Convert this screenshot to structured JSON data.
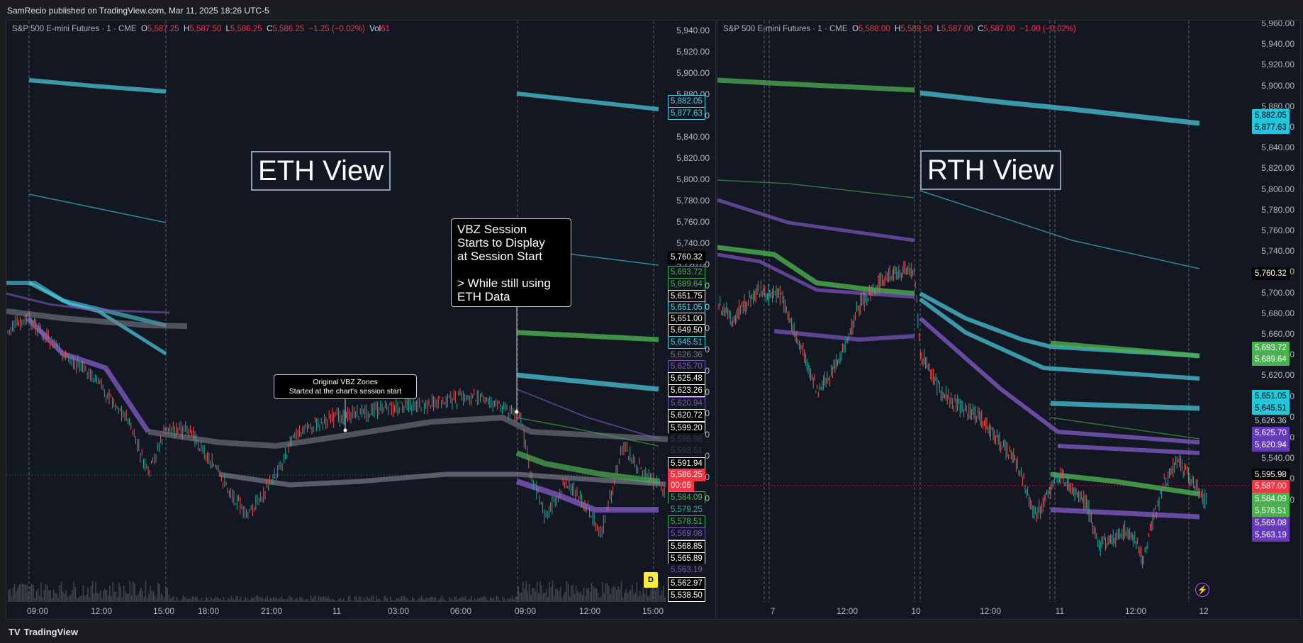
{
  "header": {
    "published": "SamRecio published on TradingView.com, Mar 11, 2025 18:26 UTC-5"
  },
  "footer": {
    "brand": "TradingView",
    "logo": "TV"
  },
  "left": {
    "legend": {
      "symbol": "S&P 500 E-mini Futures · 1 · CME",
      "o_k": "O",
      "o": "5,587.25",
      "h_k": "H",
      "h": "5,587.50",
      "l_k": "L",
      "l": "5,586.25",
      "c_k": "C",
      "c": "5,586.25",
      "chg": "−1.25 (−0.02%)",
      "vol_k": "Vol",
      "vol": "61"
    },
    "view_label": "ETH View",
    "annotation_main": "VBZ Session\nStarts to Display\nat Session Start\n\n> While still using\nETH Data",
    "annotation_small": "Original VBZ Zones\nStarted at the chart's session start",
    "y_ticks": [
      "5,940.00",
      "5,920.00",
      "5,900.00",
      "5,880.00",
      "5,860.00",
      "5,840.00",
      "5,820.00",
      "5,800.00",
      "5,780.00",
      "5,760.00",
      "5,740.00",
      "5,720.00",
      "5,700.00",
      "5,680.00",
      "5,660.00",
      "5,640.00",
      "5,620.00",
      "5,600.00",
      "5,580.00",
      "5,560.00",
      "5,540.00",
      "5,520.00",
      "5,500.00"
    ],
    "x_ticks": [
      "09:00",
      "12:00",
      "15:00",
      "18:00",
      "21:00",
      "11",
      "03:00",
      "06:00",
      "09:00",
      "12:00",
      "15:00"
    ],
    "price_tags": [
      {
        "t": "5,882.05",
        "bg": "#131722",
        "fg": "#4dd0e1",
        "bd": "#4dd0e1"
      },
      {
        "t": "5,877.63",
        "bg": "#131722",
        "fg": "#4dd0e1",
        "bd": "#4dd0e1"
      },
      {
        "t": "5,760.32",
        "bg": "#000000",
        "fg": "#ffffff",
        "bd": "#000000"
      },
      {
        "t": "5,693.72",
        "bg": "#131722",
        "fg": "#4caf50",
        "bd": "#4caf50"
      },
      {
        "t": "5,689.64",
        "bg": "#131722",
        "fg": "#4caf50",
        "bd": "#4caf50"
      },
      {
        "t": "5,651.75",
        "bg": "#000000",
        "fg": "#ffffff",
        "bd": "#ffffff"
      },
      {
        "t": "5,651.05",
        "bg": "#131722",
        "fg": "#4dd0e1",
        "bd": "#4dd0e1"
      },
      {
        "t": "5,651.00",
        "bg": "#000000",
        "fg": "#ffffff",
        "bd": "#ffffff"
      },
      {
        "t": "5,649.50",
        "bg": "#000000",
        "fg": "#ffffff",
        "bd": "#ffffff"
      },
      {
        "t": "5,645.51",
        "bg": "#131722",
        "fg": "#4dd0e1",
        "bd": "#4dd0e1"
      },
      {
        "t": "5,626.36",
        "bg": "#131722",
        "fg": "#787b86",
        "bd": "#131722"
      },
      {
        "t": "5,625.70",
        "bg": "#131722",
        "fg": "#7e57c2",
        "bd": "#7e57c2"
      },
      {
        "t": "5,625.48",
        "bg": "#000000",
        "fg": "#ffffff",
        "bd": "#ffffff"
      },
      {
        "t": "5,623.26",
        "bg": "#000000",
        "fg": "#ffffff",
        "bd": "#ffffff"
      },
      {
        "t": "5,620.94",
        "bg": "#131722",
        "fg": "#7e57c2",
        "bd": "#7e57c2"
      },
      {
        "t": "5,620.72",
        "bg": "#000000",
        "fg": "#ffffff",
        "bd": "#ffffff"
      },
      {
        "t": "5,599.20",
        "bg": "#000000",
        "fg": "#ffffff",
        "bd": "#ffffff"
      },
      {
        "t": "5,595.98",
        "bg": "#131722",
        "fg": "#363a45",
        "bd": "#131722"
      },
      {
        "t": "5,593.51",
        "bg": "#131722",
        "fg": "#363a45",
        "bd": "#131722"
      },
      {
        "t": "5,591.94",
        "bg": "#000000",
        "fg": "#ffffff",
        "bd": "#ffffff"
      },
      {
        "t": "5,586.25",
        "bg": "#f23645",
        "fg": "#ffffff",
        "bd": "#f23645"
      },
      {
        "t": "00:06",
        "bg": "#f23645",
        "fg": "#ffffff",
        "bd": "#f23645"
      },
      {
        "t": "5,584.09",
        "bg": "#131722",
        "fg": "#4caf50",
        "bd": "#4caf50"
      },
      {
        "t": "5,579.25",
        "bg": "#131722",
        "fg": "#26a69a",
        "bd": "#131722"
      },
      {
        "t": "5,578.51",
        "bg": "#131722",
        "fg": "#4caf50",
        "bd": "#4caf50"
      },
      {
        "t": "5,569.08",
        "bg": "#131722",
        "fg": "#7e57c2",
        "bd": "#7e57c2"
      },
      {
        "t": "5,568.85",
        "bg": "#000000",
        "fg": "#ffffff",
        "bd": "#ffffff"
      },
      {
        "t": "5,565.89",
        "bg": "#000000",
        "fg": "#ffffff",
        "bd": "#ffffff"
      },
      {
        "t": "5,563.19",
        "bg": "#131722",
        "fg": "#7e57c2",
        "bd": "#131722"
      },
      {
        "t": "5,562.97",
        "bg": "#000000",
        "fg": "#ffffff",
        "bd": "#ffffff"
      },
      {
        "t": "5,538.50",
        "bg": "#000000",
        "fg": "#ffffff",
        "bd": "#ffffff"
      }
    ],
    "badge": "D"
  },
  "right": {
    "legend": {
      "symbol": "S&P 500 E-mini Futures · 1 · CME",
      "o_k": "O",
      "o": "5,588.00",
      "h_k": "H",
      "h": "5,589.50",
      "l_k": "L",
      "l": "5,587.00",
      "c_k": "C",
      "c": "5,587.00",
      "chg": "−1.00 (−0.02%)"
    },
    "view_label": "RTH View",
    "y_ticks": [
      "5,960.00",
      "5,940.00",
      "5,920.00",
      "5,900.00",
      "5,880.00",
      "5,860.00",
      "5,840.00",
      "5,820.00",
      "5,800.00",
      "5,780.00",
      "5,760.00",
      "5,740.00",
      "5,720.00",
      "5,700.00",
      "5,680.00",
      "5,660.00",
      "5,640.00",
      "5,620.00",
      "5,600.00",
      "5,580.00",
      "5,560.00",
      "5,540.00",
      "5,520.00",
      "5,500.00"
    ],
    "x_ticks": [
      "7",
      "12:00",
      "10",
      "12:00",
      "11",
      "12:00",
      "12"
    ],
    "price_tags": [
      {
        "t": "5,882.05",
        "bg": "#26c6da",
        "fg": "#000000",
        "bd": "#26c6da"
      },
      {
        "t": "5,877.63",
        "bg": "#26c6da",
        "fg": "#000000",
        "bd": "#26c6da"
      },
      {
        "t": "5,760.32",
        "bg": "#000000",
        "fg": "#ffffff",
        "bd": "#000000"
      },
      {
        "t": "5,693.72",
        "bg": "#4caf50",
        "fg": "#ffffff",
        "bd": "#4caf50"
      },
      {
        "t": "5,689.64",
        "bg": "#4caf50",
        "fg": "#ffffff",
        "bd": "#4caf50"
      },
      {
        "t": "5,651.05",
        "bg": "#26c6da",
        "fg": "#000000",
        "bd": "#26c6da"
      },
      {
        "t": "5,645.51",
        "bg": "#26c6da",
        "fg": "#000000",
        "bd": "#26c6da"
      },
      {
        "t": "5,626.36",
        "bg": "#131722",
        "fg": "#d1d4dc",
        "bd": "#131722"
      },
      {
        "t": "5,625.70",
        "bg": "#673ab7",
        "fg": "#ffffff",
        "bd": "#673ab7"
      },
      {
        "t": "5,620.94",
        "bg": "#673ab7",
        "fg": "#ffffff",
        "bd": "#673ab7"
      },
      {
        "t": "5,595.98",
        "bg": "#000000",
        "fg": "#ffffff",
        "bd": "#000000"
      },
      {
        "t": "5,587.00",
        "bg": "#f23645",
        "fg": "#ffffff",
        "bd": "#f23645"
      },
      {
        "t": "5,584.09",
        "bg": "#4caf50",
        "fg": "#ffffff",
        "bd": "#4caf50"
      },
      {
        "t": "5,578.51",
        "bg": "#4caf50",
        "fg": "#ffffff",
        "bd": "#4caf50"
      },
      {
        "t": "5,569.08",
        "bg": "#673ab7",
        "fg": "#ffffff",
        "bd": "#673ab7"
      },
      {
        "t": "5,563.19",
        "bg": "#673ab7",
        "fg": "#ffffff",
        "bd": "#673ab7"
      }
    ]
  }
}
